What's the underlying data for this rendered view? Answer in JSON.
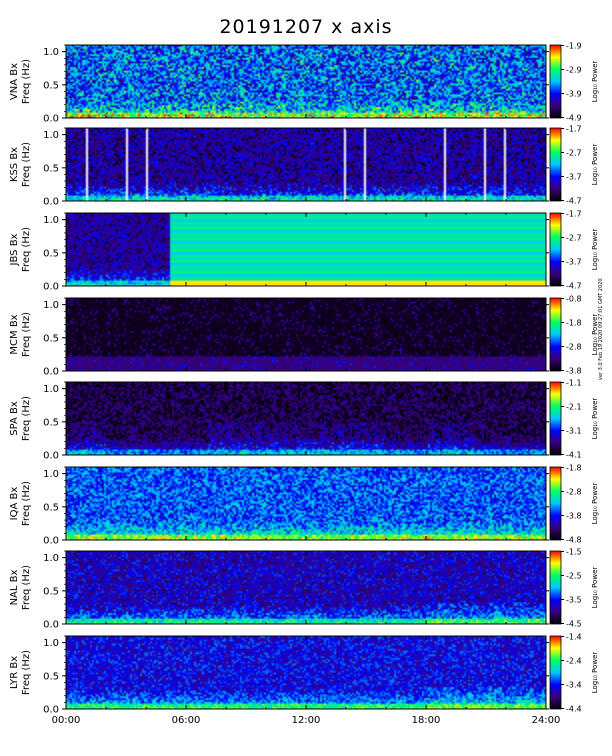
{
  "chart_data": {
    "type": "heatmap",
    "title": "20191207 x axis",
    "side_note": "ver 3.0 Feb 19 2020 09:27:01 GMT 2020",
    "x_ticks": [
      "00:00",
      "06:00",
      "12:00",
      "18:00",
      "24:00"
    ],
    "x_range_hours": [
      0,
      24
    ],
    "colorbar_label": "Log₁₀ Power",
    "colormap": [
      "#000000",
      "#3a007a",
      "#0000ff",
      "#00c8ff",
      "#00ff60",
      "#ffff00",
      "#ff0000"
    ],
    "panels": [
      {
        "station": "VNA Bx",
        "ylabel": "Freq (Hz)",
        "yticks": [
          "0.0",
          "0.5",
          "1.0"
        ],
        "ylim": [
          0,
          1.1
        ],
        "cbar_ticks": [
          "-1.9",
          "-2.9",
          "-3.9",
          "-4.9"
        ],
        "cbar_range": [
          -4.9,
          -1.9
        ]
      },
      {
        "station": "KSS Bx",
        "ylabel": "Freq (Hz)",
        "yticks": [
          "0.0",
          "0.5",
          "1.0"
        ],
        "ylim": [
          0,
          1.1
        ],
        "cbar_ticks": [
          "-1.7",
          "-2.7",
          "-3.7",
          "-4.7"
        ],
        "cbar_range": [
          -4.7,
          -1.7
        ]
      },
      {
        "station": "JBS Bx",
        "ylabel": "Freq (Hz)",
        "yticks": [
          "0.0",
          "0.5",
          "1.0"
        ],
        "ylim": [
          0,
          1.1
        ],
        "cbar_ticks": [
          "-1.7",
          "-2.7",
          "-3.7",
          "-4.7"
        ],
        "cbar_range": [
          -4.7,
          -1.7
        ]
      },
      {
        "station": "MCM Bx",
        "ylabel": "Freq (Hz)",
        "yticks": [
          "0.0",
          "0.5",
          "1.0"
        ],
        "ylim": [
          0,
          1.1
        ],
        "cbar_ticks": [
          "-0.8",
          "-1.8",
          "-2.8",
          "-3.8"
        ],
        "cbar_range": [
          -3.8,
          -0.8
        ]
      },
      {
        "station": "SPA Bx",
        "ylabel": "Freq (Hz)",
        "yticks": [
          "0.0",
          "0.5",
          "1.0"
        ],
        "ylim": [
          0,
          1.1
        ],
        "cbar_ticks": [
          "-1.1",
          "-2.1",
          "-3.1",
          "-4.1"
        ],
        "cbar_range": [
          -4.1,
          -1.1
        ]
      },
      {
        "station": "IQA Bx",
        "ylabel": "Freq (Hz)",
        "yticks": [
          "0.0",
          "0.5",
          "1.0"
        ],
        "ylim": [
          0,
          1.1
        ],
        "cbar_ticks": [
          "-1.8",
          "-2.8",
          "-3.8",
          "-4.8"
        ],
        "cbar_range": [
          -4.8,
          -1.8
        ]
      },
      {
        "station": "NAL Bx",
        "ylabel": "Freq (Hz)",
        "yticks": [
          "0.0",
          "0.5",
          "1.0"
        ],
        "ylim": [
          0,
          1.1
        ],
        "cbar_ticks": [
          "-1.5",
          "-2.5",
          "-3.5",
          "-4.5"
        ],
        "cbar_range": [
          -4.5,
          -1.5
        ]
      },
      {
        "station": "LYR Bx",
        "ylabel": "Freq (Hz)",
        "yticks": [
          "0.0",
          "0.5",
          "1.0"
        ],
        "ylim": [
          0,
          1.1
        ],
        "cbar_ticks": [
          "-1.4",
          "-2.4",
          "-3.4",
          "-4.4"
        ],
        "cbar_range": [
          -4.4,
          -1.4
        ]
      }
    ]
  }
}
